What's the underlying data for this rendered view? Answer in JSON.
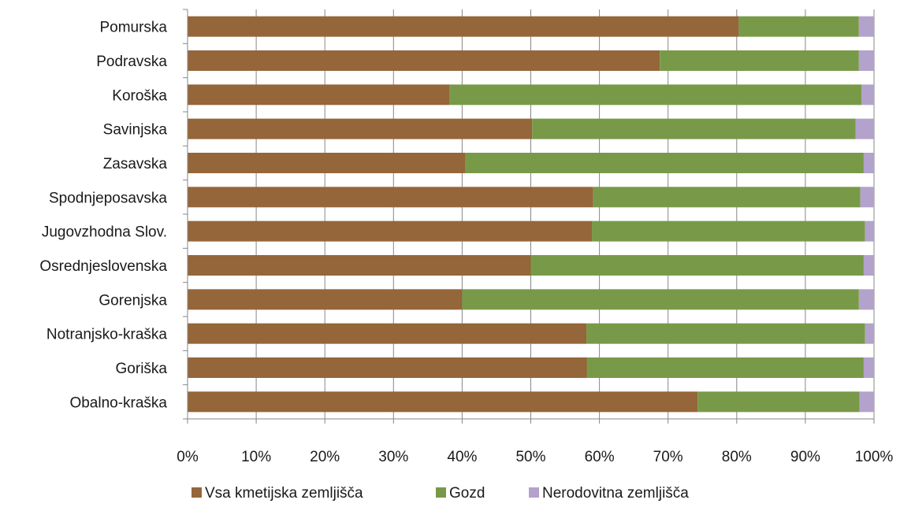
{
  "chart_data": {
    "type": "bar",
    "orientation": "horizontal",
    "stacked": true,
    "percent_stacked": true,
    "categories": [
      "Pomurska",
      "Podravska",
      "Koroška",
      "Savinjska",
      "Zasavska",
      "Spodnjeposavska",
      "Jugovzhodna Slov.",
      "Osrednjeslovenska",
      "Gorenjska",
      "Notranjsko-kraška",
      "Goriška",
      "Obalno-kraška"
    ],
    "series": [
      {
        "name": "Vsa kmetijska zemljišča",
        "color": "#94663A",
        "values": [
          80.3,
          68.8,
          38.2,
          50.2,
          40.5,
          59.1,
          58.9,
          50.0,
          40.0,
          58.1,
          58.2,
          74.3
        ]
      },
      {
        "name": "Gozd",
        "color": "#789A48",
        "values": [
          17.5,
          29.0,
          60.0,
          47.1,
          58.0,
          38.9,
          39.8,
          48.5,
          57.8,
          40.6,
          40.3,
          23.6
        ]
      },
      {
        "name": "Nerodovitna zemljišča",
        "color": "#B3A2CB",
        "values": [
          2.2,
          2.2,
          1.8,
          2.7,
          1.5,
          2.0,
          1.3,
          1.5,
          2.2,
          1.3,
          1.5,
          2.1
        ]
      }
    ],
    "xlim": [
      0,
      100
    ],
    "x_ticks": [
      "0%",
      "10%",
      "20%",
      "30%",
      "40%",
      "50%",
      "60%",
      "70%",
      "80%",
      "90%",
      "100%"
    ],
    "grid": "vertical",
    "legend_position": "bottom",
    "title": "",
    "xlabel": "",
    "ylabel": ""
  }
}
